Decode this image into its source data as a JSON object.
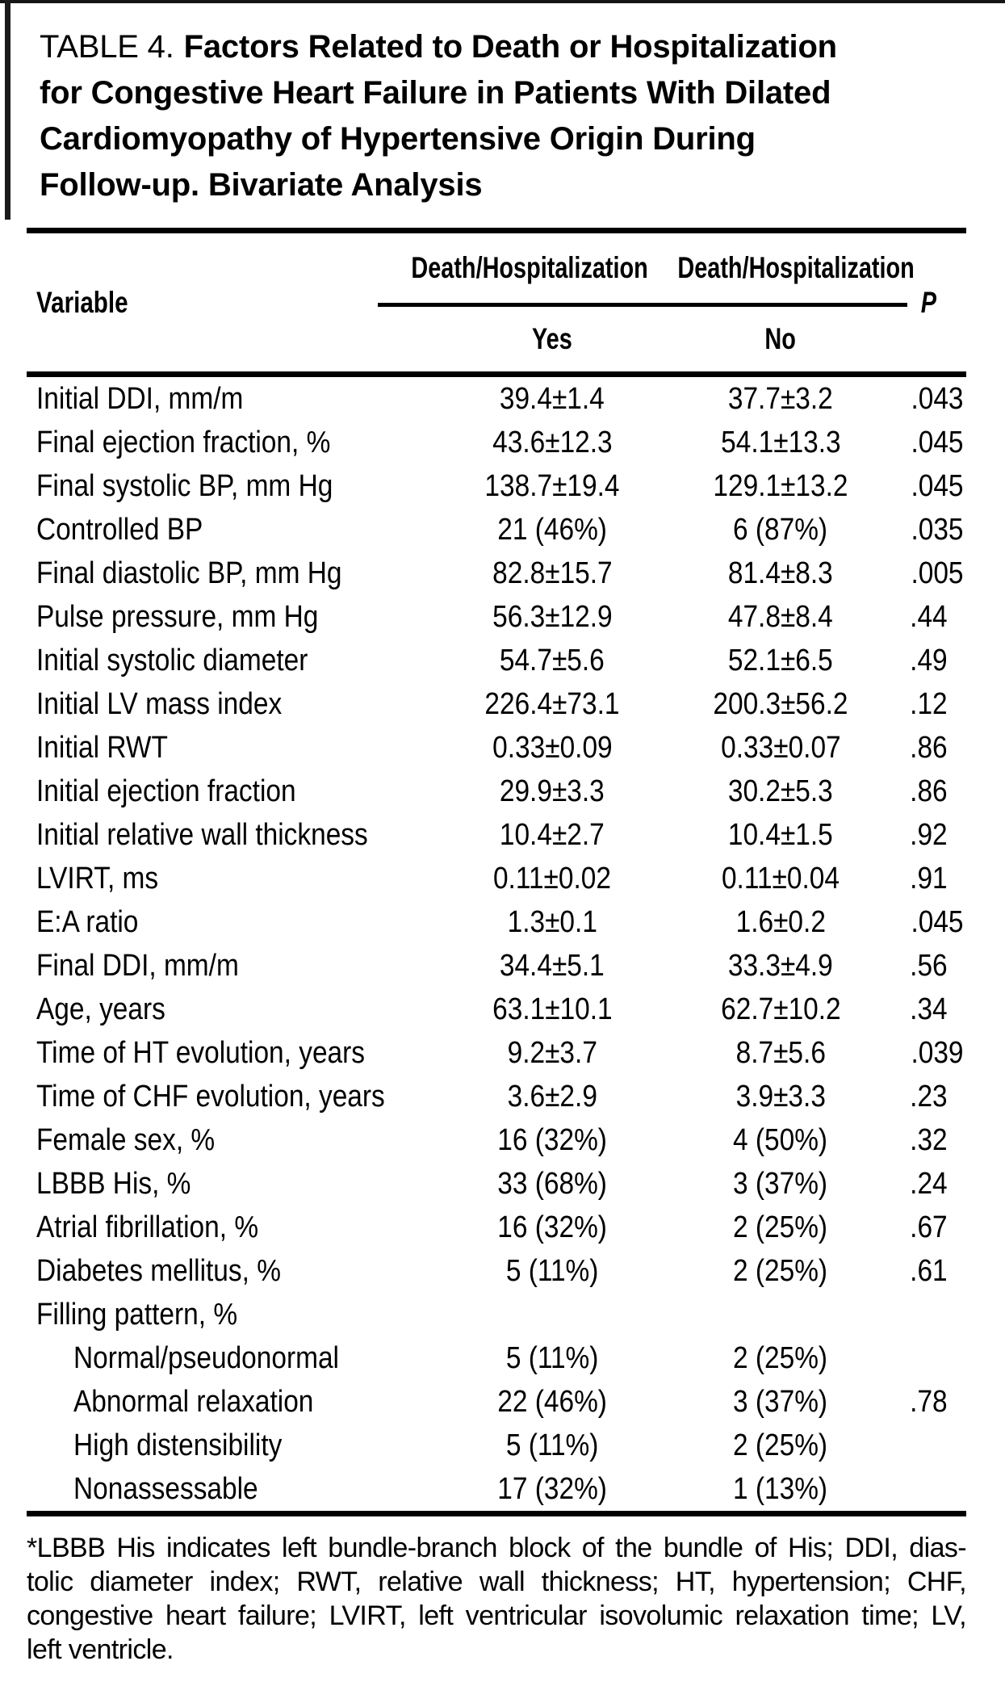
{
  "title": {
    "label": "TABLE 4.",
    "first_line": "Factors Related to Death or Hospitalization",
    "lines": [
      "for Congestive Heart Failure in Patients With Dilated",
      "Cardiomyopathy of Hypertensive Origin During",
      "Follow-up. Bivariate Analysis"
    ]
  },
  "table": {
    "col_variable": "Variable",
    "spanner_yes": "Death/Hospitalization",
    "spanner_no": "Death/Hospitalization",
    "col_yes": "Yes",
    "col_no": "No",
    "col_p": "P",
    "rows": [
      {
        "variable": "Initial DDI, mm/m",
        "yes": "39.4±1.4",
        "no": "37.7±3.2",
        "p": ".043",
        "indent": false
      },
      {
        "variable": "Final ejection fraction, %",
        "yes": "43.6±12.3",
        "no": "54.1±13.3",
        "p": ".045",
        "indent": false
      },
      {
        "variable": "Final systolic BP, mm Hg",
        "yes": "138.7±19.4",
        "no": "129.1±13.2",
        "p": ".045",
        "indent": false
      },
      {
        "variable": "Controlled BP",
        "yes": "21 (46%)",
        "no": "6 (87%)",
        "p": ".035",
        "indent": false
      },
      {
        "variable": "Final diastolic BP, mm Hg",
        "yes": "82.8±15.7",
        "no": "81.4±8.3",
        "p": ".005",
        "indent": false
      },
      {
        "variable": "Pulse pressure, mm Hg",
        "yes": "56.3±12.9",
        "no": "47.8±8.4",
        "p": ".44",
        "indent": false
      },
      {
        "variable": "Initial systolic diameter",
        "yes": "54.7±5.6",
        "no": "52.1±6.5",
        "p": ".49",
        "indent": false
      },
      {
        "variable": "Initial LV mass index",
        "yes": "226.4±73.1",
        "no": "200.3±56.2",
        "p": ".12",
        "indent": false
      },
      {
        "variable": "Initial RWT",
        "yes": "0.33±0.09",
        "no": "0.33±0.07",
        "p": ".86",
        "indent": false
      },
      {
        "variable": "Initial ejection fraction",
        "yes": "29.9±3.3",
        "no": "30.2±5.3",
        "p": ".86",
        "indent": false
      },
      {
        "variable": "Initial relative wall thickness",
        "yes": "10.4±2.7",
        "no": "10.4±1.5",
        "p": ".92",
        "indent": false
      },
      {
        "variable": "LVIRT, ms",
        "yes": "0.11±0.02",
        "no": "0.11±0.04",
        "p": ".91",
        "indent": false
      },
      {
        "variable": "E:A ratio",
        "yes": "1.3±0.1",
        "no": "1.6±0.2",
        "p": ".045",
        "indent": false
      },
      {
        "variable": "Final DDI, mm/m",
        "yes": "34.4±5.1",
        "no": "33.3±4.9",
        "p": ".56",
        "indent": false
      },
      {
        "variable": "Age, years",
        "yes": "63.1±10.1",
        "no": "62.7±10.2",
        "p": ".34",
        "indent": false
      },
      {
        "variable": "Time of HT evolution, years",
        "yes": "9.2±3.7",
        "no": "8.7±5.6",
        "p": ".039",
        "indent": false
      },
      {
        "variable": "Time of CHF evolution, years",
        "yes": "3.6±2.9",
        "no": "3.9±3.3",
        "p": ".23",
        "indent": false
      },
      {
        "variable": "Female sex, %",
        "yes": "16 (32%)",
        "no": "4 (50%)",
        "p": ".32",
        "indent": false
      },
      {
        "variable": "LBBB His, %",
        "yes": "33 (68%)",
        "no": "3 (37%)",
        "p": ".24",
        "indent": false
      },
      {
        "variable": "Atrial fibrillation, %",
        "yes": "16 (32%)",
        "no": "2 (25%)",
        "p": ".67",
        "indent": false
      },
      {
        "variable": "Diabetes mellitus, %",
        "yes": "5 (11%)",
        "no": "2 (25%)",
        "p": ".61",
        "indent": false
      },
      {
        "variable": "Filling pattern, %",
        "yes": "",
        "no": "",
        "p": "",
        "indent": false
      },
      {
        "variable": "Normal/pseudonormal",
        "yes": "5 (11%)",
        "no": "2 (25%)",
        "p": "",
        "indent": true
      },
      {
        "variable": "Abnormal relaxation",
        "yes": "22 (46%)",
        "no": "3 (37%)",
        "p": ".78",
        "indent": true
      },
      {
        "variable": "High distensibility",
        "yes": "5 (11%)",
        "no": "2 (25%)",
        "p": "",
        "indent": true
      },
      {
        "variable": "Nonassessable",
        "yes": "17 (32%)",
        "no": "1 (13%)",
        "p": "",
        "indent": true
      }
    ]
  },
  "footnote": {
    "lines": [
      "*LBBB His indicates left bundle-branch block of the bundle of His; DDI, dias-",
      "tolic diameter index; RWT, relative wall thickness; HT, hypertension; CHF,",
      "congestive heart failure; LVIRT, left ventricular isovolumic relaxation time; LV,",
      "left ventricle."
    ]
  }
}
